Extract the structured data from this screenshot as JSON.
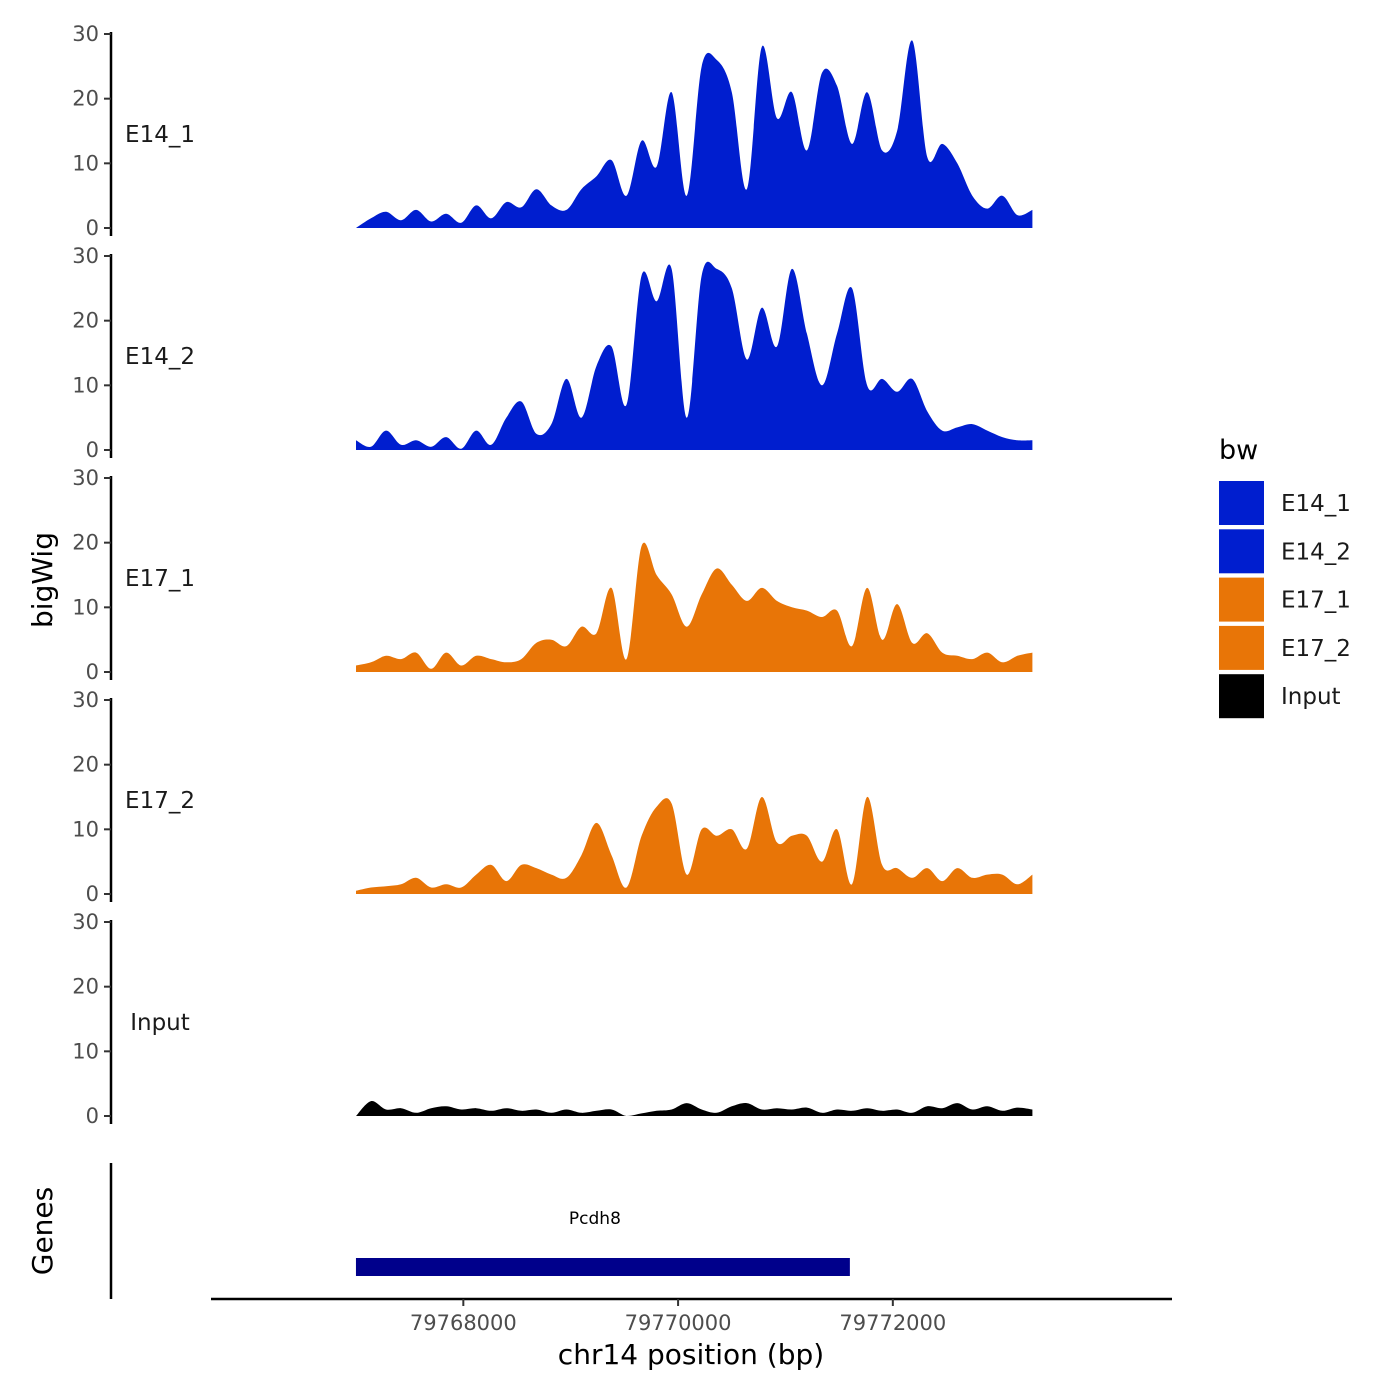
{
  "chart_data": {
    "type": "area",
    "ylabel": "bigWig",
    "xlabel": "chr14 position (bp)",
    "gene_panel_label": "Genes",
    "xlim": [
      79765650,
      79774600
    ],
    "ylim": [
      0,
      30
    ],
    "y_ticks": [
      0,
      10,
      20,
      30
    ],
    "y_tick_labels": [
      "0",
      "10",
      "20",
      "30"
    ],
    "x_ticks": [
      79768000,
      79770000,
      79772000
    ],
    "x_tick_labels": [
      "79768000",
      "79770000",
      "79772000"
    ],
    "legend": {
      "title": "bw",
      "entries": [
        {
          "label": "E14_1",
          "color": "#001ECF"
        },
        {
          "label": "E14_2",
          "color": "#001ECF"
        },
        {
          "label": "E17_1",
          "color": "#E87507"
        },
        {
          "label": "E17_2",
          "color": "#E87507"
        },
        {
          "label": "Input",
          "color": "#000000"
        }
      ]
    },
    "series": [
      {
        "name": "E14_1",
        "color": "#001ECF",
        "x": [
          79767000,
          79767140,
          79767280,
          79767420,
          79767560,
          79767700,
          79767840,
          79767980,
          79768120,
          79768260,
          79768400,
          79768540,
          79768680,
          79768820,
          79768960,
          79769100,
          79769240,
          79769380,
          79769520,
          79769660,
          79769800,
          79769940,
          79770080,
          79770220,
          79770360,
          79770500,
          79770640,
          79770780,
          79770920,
          79771060,
          79771200,
          79771340,
          79771480,
          79771620,
          79771760,
          79771900,
          79772040,
          79772180,
          79772320,
          79772460,
          79772600,
          79772740,
          79772880,
          79773020,
          79773160,
          79773300
        ],
        "y": [
          0,
          1.5,
          2.5,
          1.2,
          2.8,
          1.0,
          2.2,
          0.8,
          3.5,
          1.5,
          4.0,
          3.2,
          6.0,
          3.5,
          2.8,
          6.0,
          8.0,
          10.5,
          5.0,
          13.5,
          9.5,
          21.0,
          5.0,
          25.0,
          26.0,
          21.0,
          6.0,
          28.0,
          17.0,
          21.0,
          12.0,
          24.0,
          22.0,
          13.0,
          21.0,
          12.0,
          15.0,
          29.0,
          11.0,
          13.0,
          10.0,
          5.0,
          3.0,
          5.0,
          2.0,
          2.8
        ]
      },
      {
        "name": "E14_2",
        "color": "#001ECF",
        "x": [
          79767000,
          79767140,
          79767280,
          79767420,
          79767560,
          79767700,
          79767840,
          79767980,
          79768120,
          79768260,
          79768400,
          79768540,
          79768680,
          79768820,
          79768960,
          79769100,
          79769240,
          79769380,
          79769520,
          79769660,
          79769800,
          79769940,
          79770080,
          79770220,
          79770360,
          79770500,
          79770640,
          79770780,
          79770920,
          79771060,
          79771200,
          79771340,
          79771480,
          79771620,
          79771760,
          79771900,
          79772040,
          79772180,
          79772320,
          79772460,
          79772600,
          79772740,
          79772880,
          79773020,
          79773160,
          79773300
        ],
        "y": [
          1.5,
          0.5,
          3.0,
          0.8,
          1.5,
          0.5,
          2.0,
          0.2,
          3.0,
          0.8,
          5.0,
          7.5,
          2.5,
          4.0,
          11.0,
          5.0,
          13.0,
          16.0,
          7.0,
          27.0,
          23.0,
          28.0,
          5.0,
          27.0,
          28.0,
          25.0,
          14.0,
          22.0,
          16.0,
          28.0,
          18.0,
          10.0,
          18.0,
          25.0,
          10.0,
          11.0,
          9.0,
          11.0,
          6.0,
          3.0,
          3.5,
          4.0,
          3.0,
          2.0,
          1.5,
          1.5
        ]
      },
      {
        "name": "E17_1",
        "color": "#E87507",
        "x": [
          79767000,
          79767140,
          79767280,
          79767420,
          79767560,
          79767700,
          79767840,
          79767980,
          79768120,
          79768260,
          79768400,
          79768540,
          79768680,
          79768820,
          79768960,
          79769100,
          79769240,
          79769380,
          79769520,
          79769660,
          79769800,
          79769940,
          79770080,
          79770220,
          79770360,
          79770500,
          79770640,
          79770780,
          79770920,
          79771060,
          79771200,
          79771340,
          79771480,
          79771620,
          79771760,
          79771900,
          79772040,
          79772180,
          79772320,
          79772460,
          79772600,
          79772740,
          79772880,
          79773020,
          79773160,
          79773300
        ],
        "y": [
          1.0,
          1.5,
          2.5,
          2.0,
          3.0,
          0.5,
          3.0,
          1.0,
          2.5,
          2.0,
          1.5,
          2.0,
          4.5,
          5.0,
          4.0,
          7.0,
          6.0,
          13.0,
          2.0,
          19.5,
          15.0,
          12.0,
          7.0,
          12.0,
          16.0,
          13.5,
          11.0,
          13.0,
          11.0,
          10.0,
          9.5,
          8.5,
          9.5,
          4.0,
          13.0,
          5.0,
          10.5,
          4.5,
          6.0,
          3.0,
          2.5,
          2.0,
          3.0,
          1.5,
          2.5,
          3.0
        ]
      },
      {
        "name": "E17_2",
        "color": "#E87507",
        "x": [
          79767000,
          79767140,
          79767280,
          79767420,
          79767560,
          79767700,
          79767840,
          79767980,
          79768120,
          79768260,
          79768400,
          79768540,
          79768680,
          79768820,
          79768960,
          79769100,
          79769240,
          79769380,
          79769520,
          79769660,
          79769800,
          79769940,
          79770080,
          79770220,
          79770360,
          79770500,
          79770640,
          79770780,
          79770920,
          79771060,
          79771200,
          79771340,
          79771480,
          79771620,
          79771760,
          79771900,
          79772040,
          79772180,
          79772320,
          79772460,
          79772600,
          79772740,
          79772880,
          79773020,
          79773160,
          79773300
        ],
        "y": [
          0.5,
          1.0,
          1.2,
          1.5,
          2.5,
          1.0,
          1.5,
          1.0,
          3.0,
          4.5,
          2.0,
          4.5,
          4.0,
          3.0,
          2.5,
          6.0,
          11.0,
          6.0,
          1.0,
          9.0,
          13.5,
          14.0,
          3.0,
          10.0,
          9.0,
          10.0,
          7.0,
          15.0,
          8.0,
          9.0,
          9.0,
          5.0,
          10.0,
          1.5,
          15.0,
          4.5,
          4.0,
          2.5,
          4.0,
          2.0,
          4.0,
          2.5,
          3.0,
          3.0,
          1.5,
          3.0
        ]
      },
      {
        "name": "Input",
        "color": "#000000",
        "x": [
          79767000,
          79767140,
          79767280,
          79767420,
          79767560,
          79767700,
          79767840,
          79767980,
          79768120,
          79768260,
          79768400,
          79768540,
          79768680,
          79768820,
          79768960,
          79769100,
          79769240,
          79769380,
          79769520,
          79769660,
          79769800,
          79769940,
          79770080,
          79770220,
          79770360,
          79770500,
          79770640,
          79770780,
          79770920,
          79771060,
          79771200,
          79771340,
          79771480,
          79771620,
          79771760,
          79771900,
          79772040,
          79772180,
          79772320,
          79772460,
          79772600,
          79772740,
          79772880,
          79773020,
          79773160,
          79773300
        ],
        "y": [
          0,
          2.3,
          1.0,
          1.2,
          0.5,
          1.2,
          1.5,
          1.0,
          1.2,
          0.8,
          1.2,
          0.8,
          1.0,
          0.5,
          1.0,
          0.5,
          0.8,
          1.0,
          0,
          0.4,
          0.8,
          1.0,
          2.0,
          1.0,
          0.5,
          1.5,
          2.0,
          1.0,
          1.2,
          1.0,
          1.3,
          0.5,
          1.0,
          0.8,
          1.2,
          0.8,
          1.0,
          0.5,
          1.5,
          1.2,
          2.0,
          1.0,
          1.5,
          0.8,
          1.3,
          1.0
        ]
      }
    ],
    "genes": [
      {
        "name": "Pcdh8",
        "start": 79767000,
        "end": 79771600,
        "color": "#00008B"
      }
    ]
  }
}
